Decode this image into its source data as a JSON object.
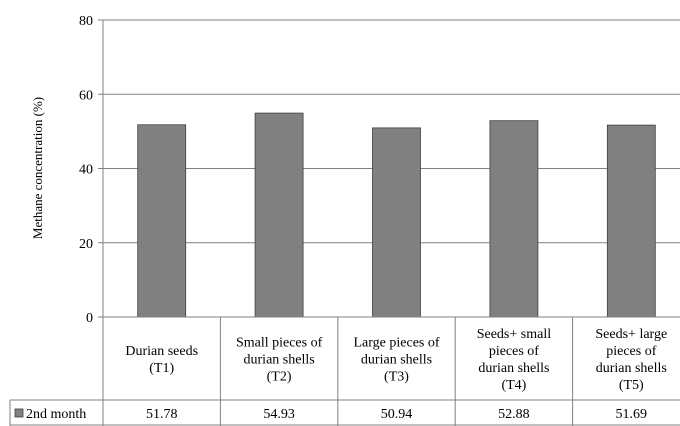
{
  "chart_data": {
    "type": "bar",
    "categories": [
      [
        "Durian seeds",
        "(T1)"
      ],
      [
        "Small pieces of",
        "durian shells",
        "(T2)"
      ],
      [
        "Large pieces of",
        "durian shells",
        "(T3)"
      ],
      [
        "Seeds+ small",
        "pieces of",
        "durian shells",
        "(T4)"
      ],
      [
        "Seeds+ large",
        "pieces of",
        "durian shells",
        "(T5)"
      ]
    ],
    "series": [
      {
        "name": "2nd month",
        "values": [
          51.78,
          54.93,
          50.94,
          52.88,
          51.69
        ],
        "value_labels": [
          "51.78",
          "54.93",
          "50.94",
          "52.88",
          "51.69"
        ],
        "color": "#808080"
      }
    ],
    "ylabel": "Methane concentration (%)",
    "ylim": [
      0,
      80
    ],
    "yticks": [
      0,
      20,
      40,
      60,
      80
    ],
    "grid": true,
    "legend": "data-table-left"
  }
}
